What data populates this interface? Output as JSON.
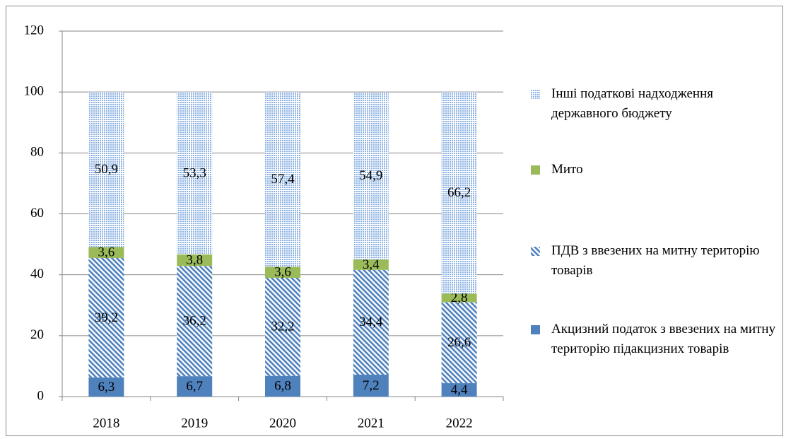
{
  "chart_data": {
    "type": "stacked_bar",
    "categories": [
      "2018",
      "2019",
      "2020",
      "2021",
      "2022"
    ],
    "series": [
      {
        "name": "Інші податкові надходження державного бюджету",
        "color": "#8fb4e3",
        "pattern": "dots",
        "values": [
          50.9,
          53.3,
          57.4,
          54.9,
          66.2
        ],
        "value_labels": [
          "50,9",
          "53,3",
          "57,4",
          "54,9",
          "66,2"
        ]
      },
      {
        "name": "Мито",
        "color": "#9bbb59",
        "pattern": "solid",
        "values": [
          3.6,
          3.8,
          3.6,
          3.4,
          2.8
        ],
        "value_labels": [
          "3,6",
          "3,8",
          "3,6",
          "3,4",
          "2,8"
        ]
      },
      {
        "name": "ПДВ з ввезених на митну територію товарів",
        "color": "#4f81bd",
        "pattern": "diagonal",
        "values": [
          39.2,
          36.2,
          32.2,
          34.4,
          26.6
        ],
        "value_labels": [
          "39,2",
          "36,2",
          "32,2",
          "34,4",
          "26,6"
        ]
      },
      {
        "name": "Акцизний податок з ввезених на митну територію підакцизних товарів",
        "color": "#4f81bd",
        "pattern": "solid",
        "values": [
          6.3,
          6.7,
          6.8,
          7.2,
          4.4
        ],
        "value_labels": [
          "6,3",
          "6,7",
          "6,8",
          "7,2",
          "4,4"
        ]
      }
    ],
    "ylim": [
      0,
      120
    ],
    "yticks": [
      0,
      20,
      40,
      60,
      80,
      100,
      120
    ],
    "grid": true,
    "legend": "right"
  }
}
